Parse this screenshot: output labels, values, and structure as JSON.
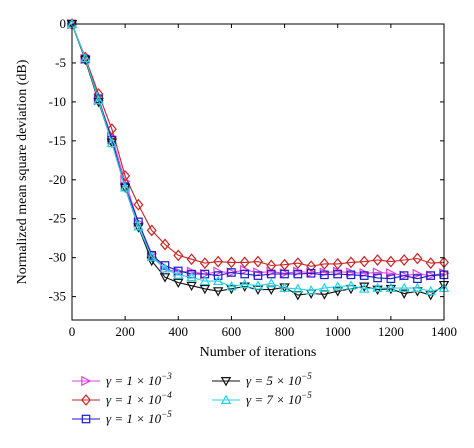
{
  "chart_data": {
    "type": "line",
    "xlabel": "Number of iterations",
    "ylabel": "Normalized mean square deviation (dB)",
    "xlim": [
      0,
      1400
    ],
    "ylim": [
      -38,
      0
    ],
    "xticks": [
      0,
      200,
      400,
      600,
      800,
      1000,
      1200,
      1400
    ],
    "yticks": [
      0,
      -5,
      -10,
      -15,
      -20,
      -25,
      -30,
      -35
    ],
    "xtick_labels": [
      "0",
      "200",
      "400",
      "600",
      "800",
      "1000",
      "1200",
      "1400"
    ],
    "ytick_labels": [
      "0",
      "-5",
      "-10",
      "-15",
      "-20",
      "-25",
      "-30",
      "-35"
    ],
    "grid": false,
    "legend_position": "bottom",
    "x": [
      0,
      50,
      100,
      150,
      200,
      250,
      300,
      350,
      400,
      450,
      500,
      550,
      600,
      650,
      700,
      750,
      800,
      850,
      900,
      950,
      1000,
      1050,
      1100,
      1150,
      1200,
      1250,
      1300,
      1350,
      1400
    ],
    "series": [
      {
        "name": "γ = 1 × 10⁻³",
        "legend_label": "γ = 1 × 10",
        "legend_exp": "−3",
        "color": "#e040e0",
        "marker": "triangle-right",
        "values": [
          0,
          -4.5,
          -9.8,
          -14.5,
          -20.2,
          -25.5,
          -29.5,
          -31.5,
          -31.8,
          -31.8,
          -32.1,
          -31.8,
          -31.9,
          -31.6,
          -31.9,
          -31.8,
          -32.0,
          -31.8,
          -31.9,
          -31.9,
          -31.8,
          -31.9,
          -32.0,
          -31.9,
          -32.0,
          -32.3,
          -32.1,
          -32.3,
          -32.0
        ]
      },
      {
        "name": "γ = 1 × 10⁻⁴",
        "legend_label": "γ = 1 × 10",
        "legend_exp": "−4",
        "color": "#cc2222",
        "marker": "diamond",
        "values": [
          0,
          -4.3,
          -9.0,
          -13.5,
          -19.5,
          -23.2,
          -26.5,
          -28.3,
          -29.7,
          -30.2,
          -30.7,
          -30.5,
          -30.6,
          -30.6,
          -30.5,
          -31.0,
          -30.9,
          -30.7,
          -31.1,
          -30.8,
          -30.8,
          -30.6,
          -30.5,
          -30.3,
          -30.5,
          -30.3,
          -30.1,
          -30.7,
          -30.6
        ]
      },
      {
        "name": "γ = 1 × 10⁻⁵",
        "legend_label": "γ = 1 × 10",
        "legend_exp": "−5",
        "color": "#1a1acc",
        "marker": "square",
        "values": [
          0,
          -4.5,
          -9.6,
          -14.9,
          -20.9,
          -25.4,
          -29.7,
          -31.0,
          -31.7,
          -32.1,
          -32.1,
          -32.3,
          -31.9,
          -32.1,
          -32.3,
          -32.1,
          -32.1,
          -32.1,
          -32.0,
          -32.2,
          -32.1,
          -32.2,
          -32.3,
          -32.6,
          -32.7,
          -32.3,
          -32.7,
          -32.3,
          -32.2
        ]
      },
      {
        "name": "γ = 5 × 10⁻⁵",
        "legend_label": "γ = 5 × 10",
        "legend_exp": "−5",
        "color": "#111111",
        "marker": "triangle-down",
        "values": [
          0,
          -4.6,
          -10.0,
          -15.2,
          -21.0,
          -26.1,
          -30.4,
          -32.5,
          -33.2,
          -33.6,
          -34.0,
          -34.3,
          -34.0,
          -33.7,
          -34.1,
          -34.1,
          -33.8,
          -34.8,
          -34.6,
          -34.7,
          -34.3,
          -34.0,
          -33.7,
          -34.1,
          -34.0,
          -34.6,
          -34.3,
          -34.8,
          -33.5
        ]
      },
      {
        "name": "γ = 7 × 10⁻⁵",
        "legend_label": "γ = 7 × 10",
        "legend_exp": "−5",
        "color": "#22d6e6",
        "marker": "triangle-up",
        "values": [
          0,
          -4.4,
          -9.8,
          -15.3,
          -21.0,
          -26.0,
          -29.9,
          -31.4,
          -32.2,
          -32.5,
          -33.0,
          -33.0,
          -33.7,
          -33.4,
          -33.6,
          -33.3,
          -33.9,
          -34.0,
          -34.2,
          -33.9,
          -33.7,
          -33.6,
          -34.0,
          -33.9,
          -33.9,
          -33.9,
          -33.9,
          -34.3,
          -33.9
        ]
      }
    ]
  }
}
